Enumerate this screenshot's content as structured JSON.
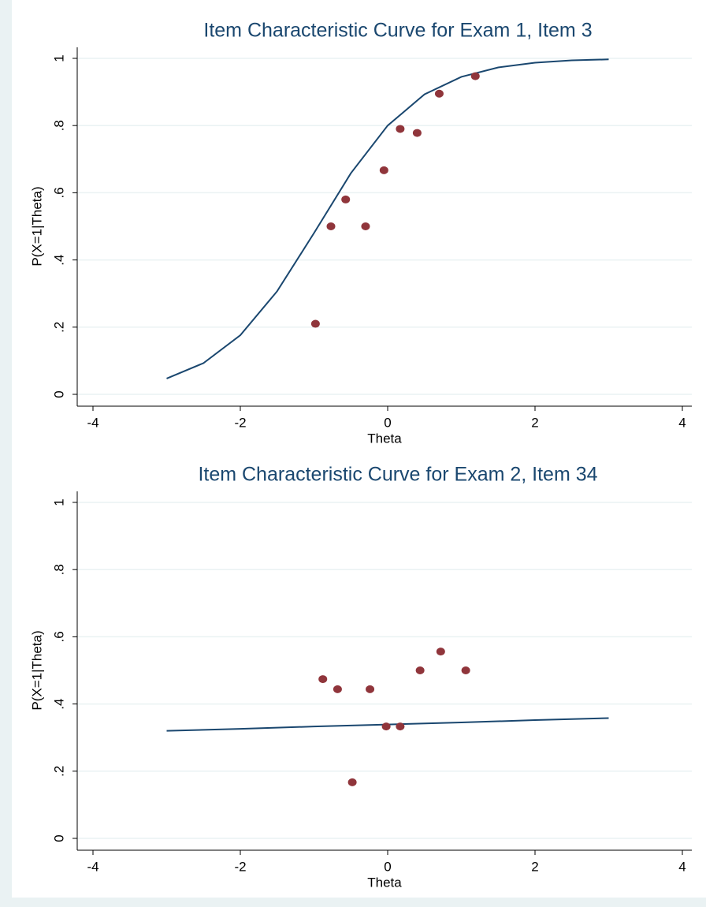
{
  "chart_data": [
    {
      "type": "scatter",
      "title": "Item Characteristic Curve for Exam 1, Item 3",
      "xlabel": "Theta",
      "ylabel": "P(X=1|Theta)",
      "xlim": [
        -4,
        4
      ],
      "ylim": [
        0,
        1
      ],
      "xticks": [
        -4,
        -2,
        0,
        2,
        4
      ],
      "yticks": [
        0,
        {
          "value": 0.2,
          "label": ".2"
        },
        {
          "value": 0.4,
          "label": ".4"
        },
        {
          "value": 0.6,
          "label": ".6"
        },
        {
          "value": 0.8,
          "label": ".8"
        },
        1
      ],
      "grid": true,
      "points": {
        "color": "#90353b",
        "x": [
          -0.98,
          -0.77,
          -0.57,
          -0.3,
          -0.05,
          0.17,
          0.4,
          0.7,
          1.19
        ],
        "values": [
          0.21,
          0.5,
          0.58,
          0.5,
          0.667,
          0.79,
          0.778,
          0.895,
          0.947
        ]
      },
      "curve": {
        "color": "#1a476f",
        "x": [
          -3,
          -2.5,
          -2,
          -1.5,
          -1,
          -0.5,
          0,
          0.5,
          1,
          1.5,
          2,
          2.5,
          3
        ],
        "values": [
          0.047,
          0.093,
          0.176,
          0.307,
          0.48,
          0.658,
          0.8,
          0.893,
          0.945,
          0.973,
          0.987,
          0.994,
          0.997
        ]
      }
    },
    {
      "type": "scatter",
      "title": "Item Characteristic Curve for Exam 2, Item 34",
      "xlabel": "Theta",
      "ylabel": "P(X=1|Theta)",
      "xlim": [
        -4,
        4
      ],
      "ylim": [
        0,
        1
      ],
      "xticks": [
        -4,
        -2,
        0,
        2,
        4
      ],
      "yticks": [
        0,
        {
          "value": 0.2,
          "label": ".2"
        },
        {
          "value": 0.4,
          "label": ".4"
        },
        {
          "value": 0.6,
          "label": ".6"
        },
        {
          "value": 0.8,
          "label": ".8"
        },
        1
      ],
      "grid": true,
      "points": {
        "color": "#90353b",
        "x": [
          -0.88,
          -0.68,
          -0.48,
          -0.24,
          -0.02,
          0.17,
          0.44,
          0.72,
          1.06
        ],
        "values": [
          0.474,
          0.444,
          0.167,
          0.444,
          0.333,
          0.333,
          0.5,
          0.556,
          0.5
        ]
      },
      "curve": {
        "color": "#1a476f",
        "x": [
          -3,
          -2,
          -1,
          0,
          1,
          2,
          3
        ],
        "values": [
          0.32,
          0.326,
          0.333,
          0.339,
          0.345,
          0.352,
          0.358
        ]
      }
    }
  ]
}
